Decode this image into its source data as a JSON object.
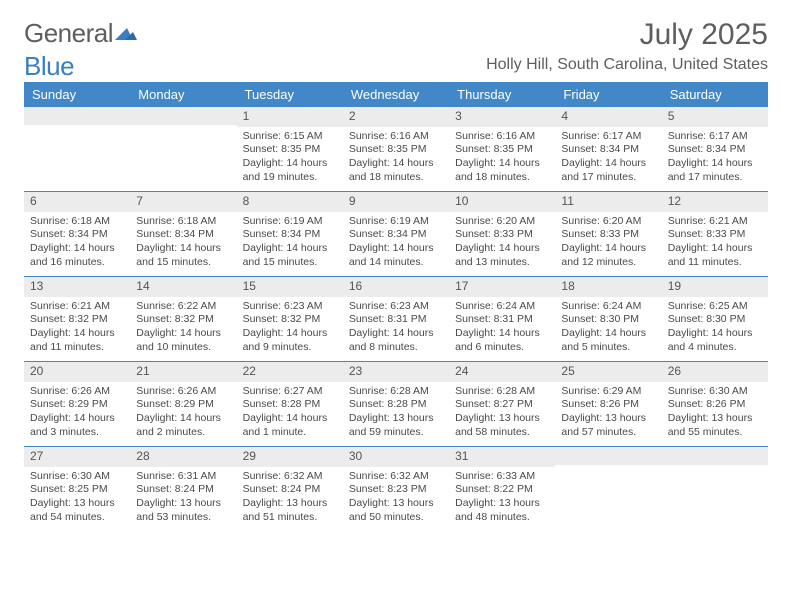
{
  "logo": {
    "part1": "General",
    "part2": "Blue"
  },
  "title": "July 2025",
  "location": "Holly Hill, South Carolina, United States",
  "colors": {
    "header_bg": "#4288c8",
    "header_text": "#ffffff",
    "daynum_bg": "#ececec",
    "text": "#4a4a4a",
    "divider": "#4288c8"
  },
  "fonts": {
    "title_size": 30,
    "location_size": 16,
    "header_size": 13,
    "body_size": 10.5
  },
  "day_headers": [
    "Sunday",
    "Monday",
    "Tuesday",
    "Wednesday",
    "Thursday",
    "Friday",
    "Saturday"
  ],
  "weeks": [
    [
      {
        "n": "",
        "sunrise": "",
        "sunset": "",
        "day1": "",
        "day2": ""
      },
      {
        "n": "",
        "sunrise": "",
        "sunset": "",
        "day1": "",
        "day2": ""
      },
      {
        "n": "1",
        "sunrise": "Sunrise: 6:15 AM",
        "sunset": "Sunset: 8:35 PM",
        "day1": "Daylight: 14 hours",
        "day2": "and 19 minutes."
      },
      {
        "n": "2",
        "sunrise": "Sunrise: 6:16 AM",
        "sunset": "Sunset: 8:35 PM",
        "day1": "Daylight: 14 hours",
        "day2": "and 18 minutes."
      },
      {
        "n": "3",
        "sunrise": "Sunrise: 6:16 AM",
        "sunset": "Sunset: 8:35 PM",
        "day1": "Daylight: 14 hours",
        "day2": "and 18 minutes."
      },
      {
        "n": "4",
        "sunrise": "Sunrise: 6:17 AM",
        "sunset": "Sunset: 8:34 PM",
        "day1": "Daylight: 14 hours",
        "day2": "and 17 minutes."
      },
      {
        "n": "5",
        "sunrise": "Sunrise: 6:17 AM",
        "sunset": "Sunset: 8:34 PM",
        "day1": "Daylight: 14 hours",
        "day2": "and 17 minutes."
      }
    ],
    [
      {
        "n": "6",
        "sunrise": "Sunrise: 6:18 AM",
        "sunset": "Sunset: 8:34 PM",
        "day1": "Daylight: 14 hours",
        "day2": "and 16 minutes."
      },
      {
        "n": "7",
        "sunrise": "Sunrise: 6:18 AM",
        "sunset": "Sunset: 8:34 PM",
        "day1": "Daylight: 14 hours",
        "day2": "and 15 minutes."
      },
      {
        "n": "8",
        "sunrise": "Sunrise: 6:19 AM",
        "sunset": "Sunset: 8:34 PM",
        "day1": "Daylight: 14 hours",
        "day2": "and 15 minutes."
      },
      {
        "n": "9",
        "sunrise": "Sunrise: 6:19 AM",
        "sunset": "Sunset: 8:34 PM",
        "day1": "Daylight: 14 hours",
        "day2": "and 14 minutes."
      },
      {
        "n": "10",
        "sunrise": "Sunrise: 6:20 AM",
        "sunset": "Sunset: 8:33 PM",
        "day1": "Daylight: 14 hours",
        "day2": "and 13 minutes."
      },
      {
        "n": "11",
        "sunrise": "Sunrise: 6:20 AM",
        "sunset": "Sunset: 8:33 PM",
        "day1": "Daylight: 14 hours",
        "day2": "and 12 minutes."
      },
      {
        "n": "12",
        "sunrise": "Sunrise: 6:21 AM",
        "sunset": "Sunset: 8:33 PM",
        "day1": "Daylight: 14 hours",
        "day2": "and 11 minutes."
      }
    ],
    [
      {
        "n": "13",
        "sunrise": "Sunrise: 6:21 AM",
        "sunset": "Sunset: 8:32 PM",
        "day1": "Daylight: 14 hours",
        "day2": "and 11 minutes."
      },
      {
        "n": "14",
        "sunrise": "Sunrise: 6:22 AM",
        "sunset": "Sunset: 8:32 PM",
        "day1": "Daylight: 14 hours",
        "day2": "and 10 minutes."
      },
      {
        "n": "15",
        "sunrise": "Sunrise: 6:23 AM",
        "sunset": "Sunset: 8:32 PM",
        "day1": "Daylight: 14 hours",
        "day2": "and 9 minutes."
      },
      {
        "n": "16",
        "sunrise": "Sunrise: 6:23 AM",
        "sunset": "Sunset: 8:31 PM",
        "day1": "Daylight: 14 hours",
        "day2": "and 8 minutes."
      },
      {
        "n": "17",
        "sunrise": "Sunrise: 6:24 AM",
        "sunset": "Sunset: 8:31 PM",
        "day1": "Daylight: 14 hours",
        "day2": "and 6 minutes."
      },
      {
        "n": "18",
        "sunrise": "Sunrise: 6:24 AM",
        "sunset": "Sunset: 8:30 PM",
        "day1": "Daylight: 14 hours",
        "day2": "and 5 minutes."
      },
      {
        "n": "19",
        "sunrise": "Sunrise: 6:25 AM",
        "sunset": "Sunset: 8:30 PM",
        "day1": "Daylight: 14 hours",
        "day2": "and 4 minutes."
      }
    ],
    [
      {
        "n": "20",
        "sunrise": "Sunrise: 6:26 AM",
        "sunset": "Sunset: 8:29 PM",
        "day1": "Daylight: 14 hours",
        "day2": "and 3 minutes."
      },
      {
        "n": "21",
        "sunrise": "Sunrise: 6:26 AM",
        "sunset": "Sunset: 8:29 PM",
        "day1": "Daylight: 14 hours",
        "day2": "and 2 minutes."
      },
      {
        "n": "22",
        "sunrise": "Sunrise: 6:27 AM",
        "sunset": "Sunset: 8:28 PM",
        "day1": "Daylight: 14 hours",
        "day2": "and 1 minute."
      },
      {
        "n": "23",
        "sunrise": "Sunrise: 6:28 AM",
        "sunset": "Sunset: 8:28 PM",
        "day1": "Daylight: 13 hours",
        "day2": "and 59 minutes."
      },
      {
        "n": "24",
        "sunrise": "Sunrise: 6:28 AM",
        "sunset": "Sunset: 8:27 PM",
        "day1": "Daylight: 13 hours",
        "day2": "and 58 minutes."
      },
      {
        "n": "25",
        "sunrise": "Sunrise: 6:29 AM",
        "sunset": "Sunset: 8:26 PM",
        "day1": "Daylight: 13 hours",
        "day2": "and 57 minutes."
      },
      {
        "n": "26",
        "sunrise": "Sunrise: 6:30 AM",
        "sunset": "Sunset: 8:26 PM",
        "day1": "Daylight: 13 hours",
        "day2": "and 55 minutes."
      }
    ],
    [
      {
        "n": "27",
        "sunrise": "Sunrise: 6:30 AM",
        "sunset": "Sunset: 8:25 PM",
        "day1": "Daylight: 13 hours",
        "day2": "and 54 minutes."
      },
      {
        "n": "28",
        "sunrise": "Sunrise: 6:31 AM",
        "sunset": "Sunset: 8:24 PM",
        "day1": "Daylight: 13 hours",
        "day2": "and 53 minutes."
      },
      {
        "n": "29",
        "sunrise": "Sunrise: 6:32 AM",
        "sunset": "Sunset: 8:24 PM",
        "day1": "Daylight: 13 hours",
        "day2": "and 51 minutes."
      },
      {
        "n": "30",
        "sunrise": "Sunrise: 6:32 AM",
        "sunset": "Sunset: 8:23 PM",
        "day1": "Daylight: 13 hours",
        "day2": "and 50 minutes."
      },
      {
        "n": "31",
        "sunrise": "Sunrise: 6:33 AM",
        "sunset": "Sunset: 8:22 PM",
        "day1": "Daylight: 13 hours",
        "day2": "and 48 minutes."
      },
      {
        "n": "",
        "sunrise": "",
        "sunset": "",
        "day1": "",
        "day2": ""
      },
      {
        "n": "",
        "sunrise": "",
        "sunset": "",
        "day1": "",
        "day2": ""
      }
    ]
  ]
}
